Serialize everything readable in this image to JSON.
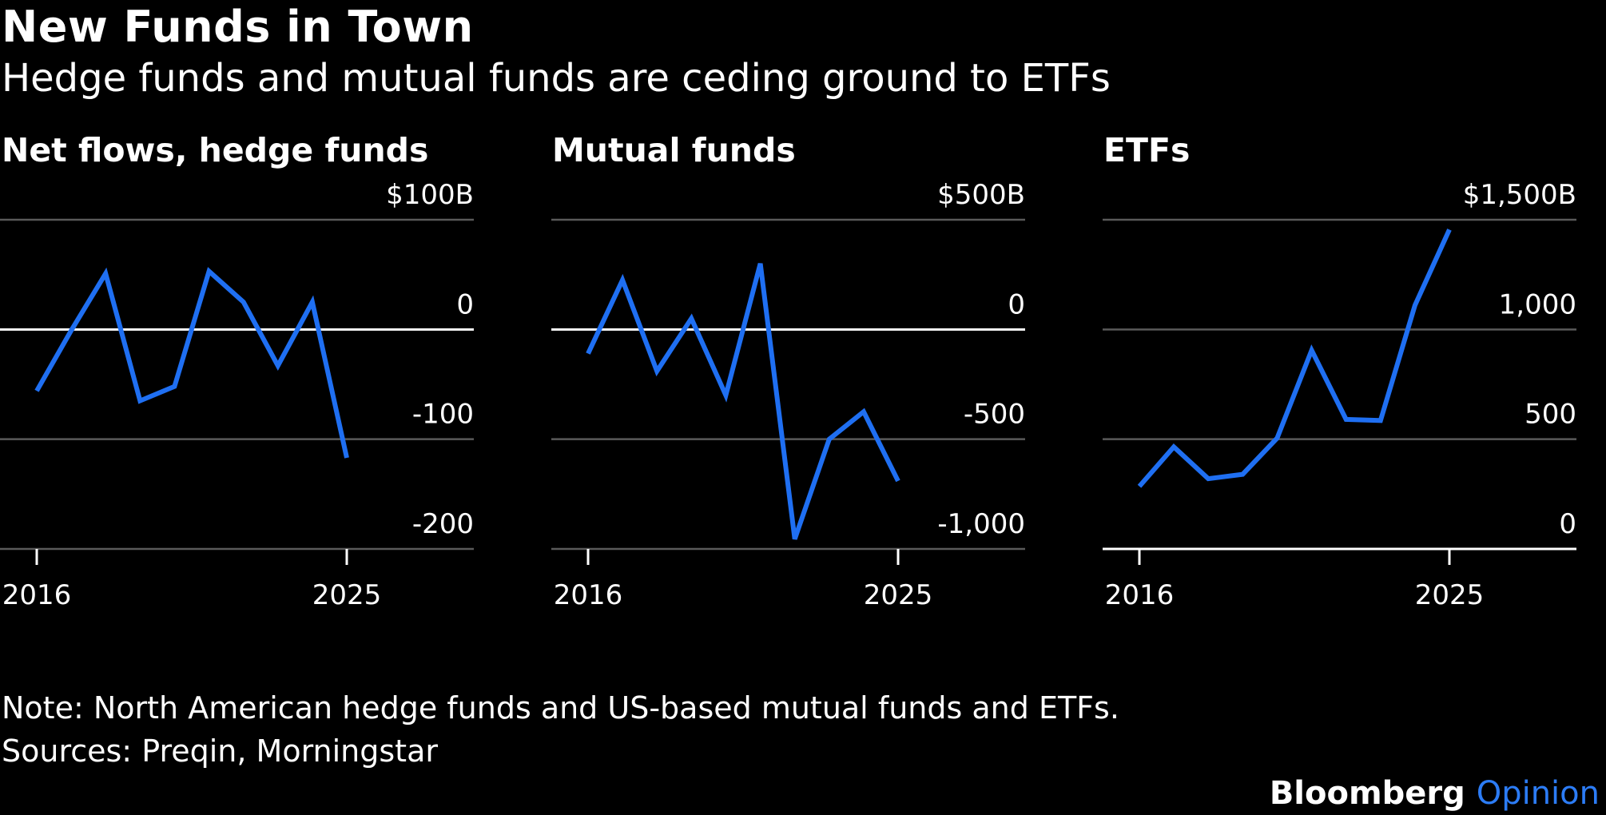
{
  "title": "New Funds in Town",
  "subtitle": "Hedge funds and mutual funds are ceding ground to ETFs",
  "note": "Note: North American hedge funds and US-based mutual funds and ETFs.",
  "sources": "Sources: Preqin, Morningstar",
  "brand": {
    "name": "Bloomberg",
    "section": "Opinion"
  },
  "colors": {
    "line": "#1f6ff2",
    "grid": "#5a5a5a",
    "zero": "#ffffff",
    "text": "#ffffff",
    "background": "#000000"
  },
  "chart_data": [
    {
      "type": "line",
      "title": "Net flows, hedge funds",
      "x": [
        2016,
        2017,
        2018,
        2019,
        2020,
        2021,
        2022,
        2023,
        2024,
        2025
      ],
      "values": [
        -56,
        -1,
        51,
        -65,
        -52,
        53,
        25,
        -33,
        25,
        -117
      ],
      "ylim": [
        -200,
        100
      ],
      "yticks": [
        {
          "value": 100,
          "label": "$100B"
        },
        {
          "value": 0,
          "label": "0"
        },
        {
          "value": -100,
          "label": "-100"
        },
        {
          "value": -200,
          "label": "-200"
        }
      ],
      "xticks": [
        {
          "value": 2016,
          "label": "2016"
        },
        {
          "value": 2025,
          "label": "2025"
        }
      ],
      "grid": true,
      "zero_line": true
    },
    {
      "type": "line",
      "title": "Mutual funds",
      "x": [
        2016,
        2017,
        2018,
        2019,
        2020,
        2021,
        2022,
        2023,
        2024,
        2025
      ],
      "values": [
        -110,
        225,
        -190,
        50,
        -300,
        300,
        -955,
        -500,
        -375,
        -690
      ],
      "ylim": [
        -1000,
        500
      ],
      "yticks": [
        {
          "value": 500,
          "label": "$500B"
        },
        {
          "value": 0,
          "label": "0"
        },
        {
          "value": -500,
          "label": "-500"
        },
        {
          "value": -1000,
          "label": "-1,000"
        }
      ],
      "xticks": [
        {
          "value": 2016,
          "label": "2016"
        },
        {
          "value": 2025,
          "label": "2025"
        }
      ],
      "grid": true,
      "zero_line": true
    },
    {
      "type": "line",
      "title": "ETFs",
      "x": [
        2016,
        2017,
        2018,
        2019,
        2020,
        2021,
        2022,
        2023,
        2024,
        2025
      ],
      "values": [
        285,
        465,
        320,
        340,
        505,
        905,
        590,
        585,
        1110,
        1455
      ],
      "ylim": [
        0,
        1500
      ],
      "yticks": [
        {
          "value": 1500,
          "label": "$1,500B"
        },
        {
          "value": 1000,
          "label": "1,000"
        },
        {
          "value": 500,
          "label": "500"
        },
        {
          "value": 0,
          "label": "0"
        }
      ],
      "xticks": [
        {
          "value": 2016,
          "label": "2016"
        },
        {
          "value": 2025,
          "label": "2025"
        }
      ],
      "grid": true,
      "zero_line": true
    }
  ]
}
